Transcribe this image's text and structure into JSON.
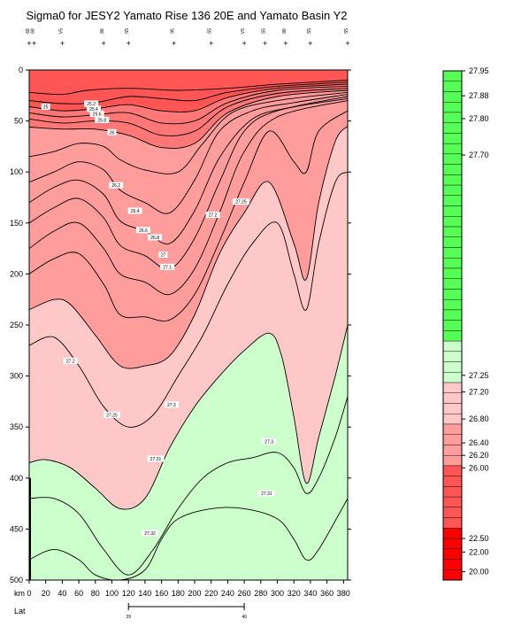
{
  "chart_data": {
    "type": "heatmap",
    "title": "Sigma0 for JESY2 Yamato Rise 136 20E and Yamato Basin Y2",
    "xlabel": "km",
    "ylabel": "",
    "xlim": [
      0,
      385
    ],
    "ylim": [
      500,
      0
    ],
    "x_ticks": [
      0,
      20,
      40,
      60,
      80,
      100,
      120,
      140,
      160,
      180,
      200,
      220,
      240,
      260,
      280,
      300,
      320,
      340,
      360,
      380
    ],
    "y_ticks": [
      0,
      50,
      100,
      150,
      200,
      250,
      300,
      350,
      400,
      450,
      500
    ],
    "lat_label": "Lat",
    "lat_ticks": [
      {
        "km": 120,
        "label": "39"
      },
      {
        "km": 260,
        "label": "40"
      }
    ],
    "stations_km": [
      0,
      6,
      40,
      90,
      120,
      175,
      220,
      260,
      285,
      310,
      340,
      385
    ],
    "station_ids": [
      "68",
      "68",
      "V5",
      "88",
      "S5",
      "95",
      "S5",
      "V5",
      "S5",
      "88",
      "S5",
      "S5"
    ],
    "colorbar": {
      "ticks": [
        "27.95",
        "27.88",
        "27.80",
        "27.70",
        "27.25",
        "27.20",
        "26.80",
        "26.40",
        "26.20",
        "26.00",
        "22.50",
        "22.00",
        "20.00"
      ],
      "colors": {
        "light_green": "#ccffcc",
        "green": "#55ff55",
        "light_pink": "#ffc8c8",
        "pink": "#ff9c9c",
        "salmon": "#ff7777",
        "red": "#ff5555",
        "deep_red": "#ff0000"
      }
    },
    "contour_labels": [
      {
        "text": "25",
        "x": 20,
        "y": 36
      },
      {
        "text": "25.2",
        "x": 75,
        "y": 33
      },
      {
        "text": "25.4",
        "x": 78,
        "y": 38
      },
      {
        "text": "25.6",
        "x": 82,
        "y": 43
      },
      {
        "text": "25.8",
        "x": 88,
        "y": 49
      },
      {
        "text": "26",
        "x": 100,
        "y": 61
      },
      {
        "text": "26.2",
        "x": 105,
        "y": 113
      },
      {
        "text": "26.4",
        "x": 128,
        "y": 138
      },
      {
        "text": "26.6",
        "x": 138,
        "y": 157
      },
      {
        "text": "26.8",
        "x": 152,
        "y": 164
      },
      {
        "text": "27",
        "x": 162,
        "y": 181
      },
      {
        "text": "27.1",
        "x": 167,
        "y": 193
      },
      {
        "text": "27.2",
        "x": 222,
        "y": 142
      },
      {
        "text": "27.25",
        "x": 256,
        "y": 129
      },
      {
        "text": "27.2",
        "x": 50,
        "y": 285
      },
      {
        "text": "27.25",
        "x": 100,
        "y": 338
      },
      {
        "text": "27.3",
        "x": 172,
        "y": 328
      },
      {
        "text": "27.3",
        "x": 290,
        "y": 364
      },
      {
        "text": "27.31",
        "x": 153,
        "y": 381
      },
      {
        "text": "27.31",
        "x": 287,
        "y": 415
      },
      {
        "text": "27.32",
        "x": 146,
        "y": 454
      }
    ],
    "contours": [
      {
        "level": 25.0,
        "points": [
          [
            0,
            22
          ],
          [
            40,
            24
          ],
          [
            70,
            20
          ],
          [
            120,
            18
          ],
          [
            180,
            20
          ],
          [
            240,
            18
          ],
          [
            300,
            14
          ],
          [
            385,
            10
          ]
        ]
      },
      {
        "level": 25.2,
        "points": [
          [
            0,
            30
          ],
          [
            40,
            33
          ],
          [
            80,
            32
          ],
          [
            120,
            26
          ],
          [
            160,
            28
          ],
          [
            200,
            30
          ],
          [
            240,
            22
          ],
          [
            300,
            16
          ],
          [
            385,
            12
          ]
        ]
      },
      {
        "level": 25.4,
        "points": [
          [
            0,
            36
          ],
          [
            40,
            40
          ],
          [
            80,
            38
          ],
          [
            120,
            34
          ],
          [
            160,
            40
          ],
          [
            200,
            40
          ],
          [
            240,
            27
          ],
          [
            300,
            18
          ],
          [
            385,
            14
          ]
        ]
      },
      {
        "level": 25.6,
        "points": [
          [
            0,
            42
          ],
          [
            40,
            46
          ],
          [
            80,
            44
          ],
          [
            120,
            42
          ],
          [
            160,
            52
          ],
          [
            200,
            50
          ],
          [
            240,
            32
          ],
          [
            300,
            20
          ],
          [
            385,
            16
          ]
        ]
      },
      {
        "level": 25.8,
        "points": [
          [
            0,
            48
          ],
          [
            40,
            52
          ],
          [
            80,
            50
          ],
          [
            120,
            52
          ],
          [
            160,
            64
          ],
          [
            200,
            60
          ],
          [
            240,
            36
          ],
          [
            300,
            23
          ],
          [
            385,
            18
          ]
        ]
      },
      {
        "level": 26.0,
        "points": [
          [
            0,
            56
          ],
          [
            40,
            58
          ],
          [
            80,
            58
          ],
          [
            120,
            64
          ],
          [
            160,
            76
          ],
          [
            200,
            72
          ],
          [
            240,
            42
          ],
          [
            300,
            26
          ],
          [
            385,
            20
          ]
        ]
      },
      {
        "level": 26.2,
        "points": [
          [
            0,
            85
          ],
          [
            30,
            80
          ],
          [
            60,
            72
          ],
          [
            90,
            75
          ],
          [
            110,
            88
          ],
          [
            140,
            98
          ],
          [
            180,
            100
          ],
          [
            210,
            72
          ],
          [
            245,
            42
          ],
          [
            300,
            30
          ],
          [
            385,
            22
          ]
        ]
      },
      {
        "level": 26.4,
        "points": [
          [
            0,
            110
          ],
          [
            30,
            100
          ],
          [
            60,
            90
          ],
          [
            90,
            98
          ],
          [
            110,
            118
          ],
          [
            140,
            130
          ],
          [
            170,
            140
          ],
          [
            200,
            108
          ],
          [
            230,
            60
          ],
          [
            270,
            40
          ],
          [
            320,
            32
          ],
          [
            385,
            24
          ]
        ]
      },
      {
        "level": 26.6,
        "points": [
          [
            0,
            130
          ],
          [
            30,
            115
          ],
          [
            60,
            108
          ],
          [
            90,
            122
          ],
          [
            110,
            148
          ],
          [
            140,
            158
          ],
          [
            170,
            170
          ],
          [
            200,
            138
          ],
          [
            230,
            86
          ],
          [
            270,
            48
          ],
          [
            320,
            36
          ],
          [
            385,
            26
          ]
        ]
      },
      {
        "level": 26.8,
        "points": [
          [
            0,
            150
          ],
          [
            30,
            135
          ],
          [
            60,
            126
          ],
          [
            90,
            145
          ],
          [
            110,
            172
          ],
          [
            140,
            182
          ],
          [
            170,
            195
          ],
          [
            200,
            165
          ],
          [
            230,
            110
          ],
          [
            260,
            60
          ],
          [
            300,
            40
          ],
          [
            385,
            28
          ]
        ]
      },
      {
        "level": 27.0,
        "points": [
          [
            0,
            175
          ],
          [
            30,
            158
          ],
          [
            60,
            150
          ],
          [
            90,
            175
          ],
          [
            110,
            200
          ],
          [
            140,
            208
          ],
          [
            170,
            220
          ],
          [
            200,
            195
          ],
          [
            230,
            140
          ],
          [
            260,
            80
          ],
          [
            300,
            46
          ],
          [
            385,
            30
          ]
        ]
      },
      {
        "level": 27.1,
        "points": [
          [
            0,
            200
          ],
          [
            30,
            185
          ],
          [
            60,
            180
          ],
          [
            90,
            210
          ],
          [
            110,
            240
          ],
          [
            140,
            242
          ],
          [
            170,
            245
          ],
          [
            200,
            220
          ],
          [
            230,
            168
          ],
          [
            260,
            110
          ],
          [
            290,
            60
          ],
          [
            320,
            90
          ],
          [
            335,
            100
          ],
          [
            350,
            60
          ],
          [
            385,
            40
          ]
        ]
      },
      {
        "level": 27.2,
        "points": [
          [
            0,
            235
          ],
          [
            30,
            225
          ],
          [
            50,
            230
          ],
          [
            80,
            260
          ],
          [
            110,
            290
          ],
          [
            140,
            290
          ],
          [
            170,
            280
          ],
          [
            200,
            240
          ],
          [
            230,
            180
          ],
          [
            260,
            140
          ],
          [
            290,
            110
          ],
          [
            320,
            170
          ],
          [
            335,
            205
          ],
          [
            350,
            130
          ],
          [
            370,
            70
          ],
          [
            385,
            55
          ]
        ]
      },
      {
        "level": 27.25,
        "points": [
          [
            0,
            270
          ],
          [
            30,
            262
          ],
          [
            60,
            290
          ],
          [
            90,
            330
          ],
          [
            120,
            350
          ],
          [
            150,
            338
          ],
          [
            180,
            300
          ],
          [
            210,
            260
          ],
          [
            240,
            210
          ],
          [
            270,
            170
          ],
          [
            300,
            150
          ],
          [
            320,
            200
          ],
          [
            335,
            235
          ],
          [
            350,
            170
          ],
          [
            370,
            110
          ],
          [
            385,
            100
          ]
        ]
      },
      {
        "level": 27.3,
        "points": [
          [
            0,
            385
          ],
          [
            20,
            382
          ],
          [
            50,
            390
          ],
          [
            80,
            410
          ],
          [
            110,
            430
          ],
          [
            140,
            420
          ],
          [
            170,
            370
          ],
          [
            200,
            330
          ],
          [
            230,
            300
          ],
          [
            260,
            275
          ],
          [
            290,
            258
          ],
          [
            305,
            280
          ],
          [
            320,
            340
          ],
          [
            335,
            405
          ],
          [
            350,
            360
          ],
          [
            370,
            300
          ],
          [
            385,
            250
          ]
        ]
      },
      {
        "level": 27.31,
        "points": [
          [
            0,
            420
          ],
          [
            30,
            420
          ],
          [
            60,
            435
          ],
          [
            90,
            470
          ],
          [
            120,
            495
          ],
          [
            150,
            470
          ],
          [
            180,
            430
          ],
          [
            210,
            400
          ],
          [
            240,
            385
          ],
          [
            270,
            380
          ],
          [
            300,
            375
          ],
          [
            320,
            390
          ],
          [
            335,
            415
          ],
          [
            350,
            400
          ],
          [
            370,
            360
          ],
          [
            385,
            320
          ]
        ]
      },
      {
        "level": 27.32,
        "points": [
          [
            0,
            480
          ],
          [
            30,
            470
          ],
          [
            60,
            480
          ],
          [
            80,
            495
          ],
          [
            110,
            500
          ],
          [
            140,
            490
          ],
          [
            160,
            460
          ],
          [
            180,
            440
          ],
          [
            220,
            430
          ],
          [
            260,
            430
          ],
          [
            300,
            440
          ],
          [
            320,
            460
          ],
          [
            335,
            480
          ],
          [
            350,
            470
          ],
          [
            385,
            420
          ]
        ]
      }
    ]
  }
}
